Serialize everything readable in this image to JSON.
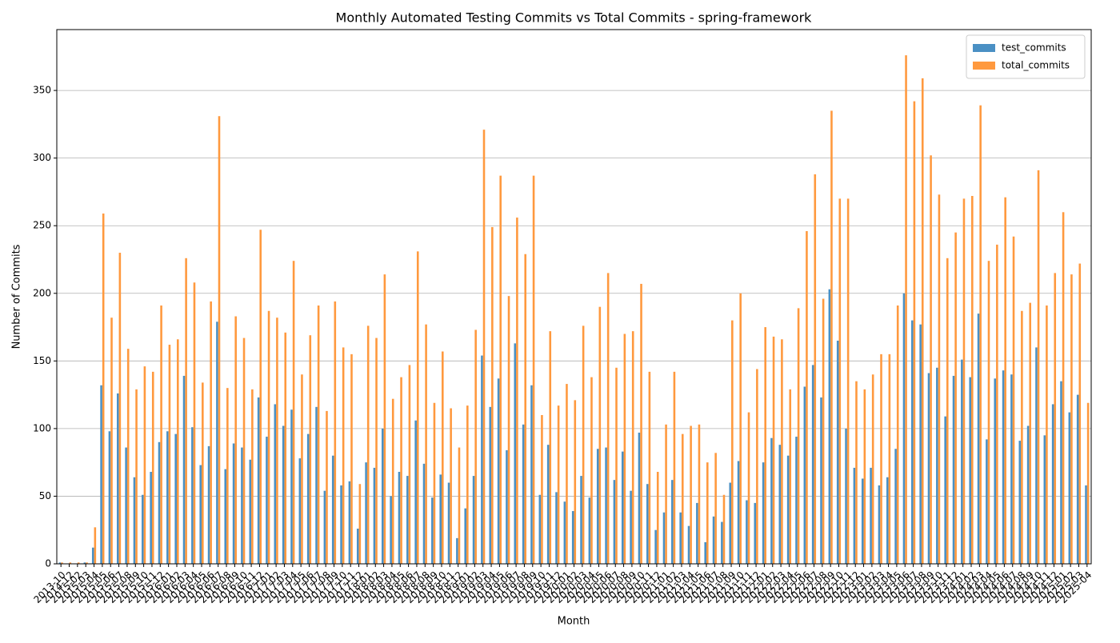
{
  "chart_data": {
    "type": "bar",
    "title": "Monthly Automated Testing Commits vs Total Commits - spring-framework",
    "x_label": "Month",
    "y_label": "Number of Commits",
    "categories": [
      "2013-10",
      "2014-12",
      "2015-02",
      "2015-03",
      "2015-04",
      "2015-05",
      "2015-06",
      "2015-07",
      "2015-08",
      "2015-09",
      "2015-10",
      "2015-11",
      "2015-12",
      "2016-01",
      "2016-02",
      "2016-03",
      "2016-04",
      "2016-05",
      "2016-06",
      "2016-07",
      "2016-08",
      "2016-09",
      "2016-10",
      "2016-11",
      "2016-12",
      "2017-01",
      "2017-02",
      "2017-03",
      "2017-04",
      "2017-05",
      "2017-06",
      "2017-07",
      "2017-08",
      "2017-09",
      "2017-10",
      "2017-11",
      "2017-12",
      "2018-01",
      "2018-02",
      "2018-03",
      "2018-04",
      "2018-05",
      "2018-06",
      "2018-07",
      "2018-08",
      "2018-09",
      "2018-10",
      "2018-11",
      "2018-12",
      "2019-01",
      "2019-02",
      "2019-03",
      "2019-04",
      "2019-05",
      "2019-06",
      "2019-07",
      "2019-08",
      "2019-09",
      "2019-10",
      "2019-11",
      "2019-12",
      "2020-01",
      "2020-02",
      "2020-03",
      "2020-04",
      "2020-05",
      "2020-06",
      "2020-07",
      "2020-08",
      "2020-09",
      "2020-10",
      "2020-11",
      "2020-12",
      "2021-01",
      "2021-02",
      "2021-03",
      "2021-04",
      "2021-05",
      "2021-06",
      "2021-07",
      "2021-08",
      "2021-09",
      "2021-10",
      "2021-11",
      "2021-12",
      "2022-01",
      "2022-02",
      "2022-03",
      "2022-04",
      "2022-05",
      "2022-06",
      "2022-07",
      "2022-08",
      "2022-09",
      "2022-10",
      "2022-11",
      "2022-12",
      "2023-01",
      "2023-02",
      "2023-03",
      "2023-04",
      "2023-05",
      "2023-06",
      "2023-07",
      "2023-08",
      "2023-09",
      "2023-10",
      "2023-11",
      "2023-12",
      "2024-01",
      "2024-02",
      "2024-03",
      "2024-04",
      "2024-05",
      "2024-06",
      "2024-07",
      "2024-08",
      "2024-09",
      "2024-10",
      "2024-11",
      "2024-12",
      "2025-01",
      "2025-02",
      "2025-03",
      "2025-04"
    ],
    "series": [
      {
        "name": "test_commits",
        "color": "#4a90c4",
        "values": [
          1,
          0,
          0,
          1,
          12,
          132,
          98,
          126,
          86,
          64,
          51,
          68,
          90,
          98,
          96,
          139,
          101,
          73,
          87,
          179,
          70,
          89,
          86,
          77,
          123,
          94,
          118,
          102,
          114,
          78,
          96,
          116,
          54,
          80,
          58,
          61,
          26,
          75,
          71,
          100,
          50,
          68,
          65,
          106,
          74,
          49,
          66,
          60,
          19,
          41,
          65,
          154,
          116,
          137,
          84,
          163,
          103,
          132,
          51,
          88,
          53,
          46,
          39,
          65,
          49,
          85,
          86,
          62,
          83,
          54,
          97,
          59,
          25,
          38,
          62,
          38,
          28,
          45,
          16,
          35,
          31,
          60,
          76,
          47,
          45,
          75,
          93,
          88,
          80,
          94,
          131,
          147,
          123,
          203,
          165,
          100,
          71,
          63,
          71,
          58,
          64,
          85,
          200,
          180,
          177,
          141,
          145,
          109,
          139,
          151,
          138,
          185,
          92,
          137,
          143,
          140,
          91,
          102,
          160,
          95,
          118,
          135,
          112,
          125,
          58
        ]
      },
      {
        "name": "total_commits",
        "color": "#ff993e",
        "values": [
          1,
          1,
          1,
          1,
          27,
          259,
          182,
          230,
          159,
          129,
          146,
          142,
          191,
          162,
          166,
          226,
          208,
          134,
          194,
          331,
          130,
          183,
          167,
          129,
          247,
          187,
          182,
          171,
          224,
          140,
          169,
          191,
          113,
          194,
          160,
          155,
          59,
          176,
          167,
          214,
          122,
          138,
          147,
          231,
          177,
          119,
          157,
          115,
          86,
          117,
          173,
          321,
          249,
          287,
          198,
          256,
          229,
          287,
          110,
          172,
          117,
          133,
          121,
          176,
          138,
          190,
          215,
          145,
          170,
          172,
          207,
          142,
          68,
          103,
          142,
          96,
          102,
          103,
          75,
          82,
          51,
          180,
          200,
          112,
          144,
          175,
          168,
          166,
          129,
          189,
          246,
          288,
          196,
          335,
          270,
          270,
          135,
          129,
          140,
          155,
          155,
          191,
          376,
          342,
          359,
          302,
          273,
          226,
          245,
          270,
          272,
          339,
          224,
          236,
          271,
          242,
          187,
          193,
          291,
          191,
          215,
          260,
          214,
          222,
          119
        ]
      }
    ],
    "ylim": [
      0,
      395
    ],
    "yticks": [
      0,
      50,
      100,
      150,
      200,
      250,
      300,
      350
    ],
    "grid": "y",
    "legend": "upper right"
  }
}
